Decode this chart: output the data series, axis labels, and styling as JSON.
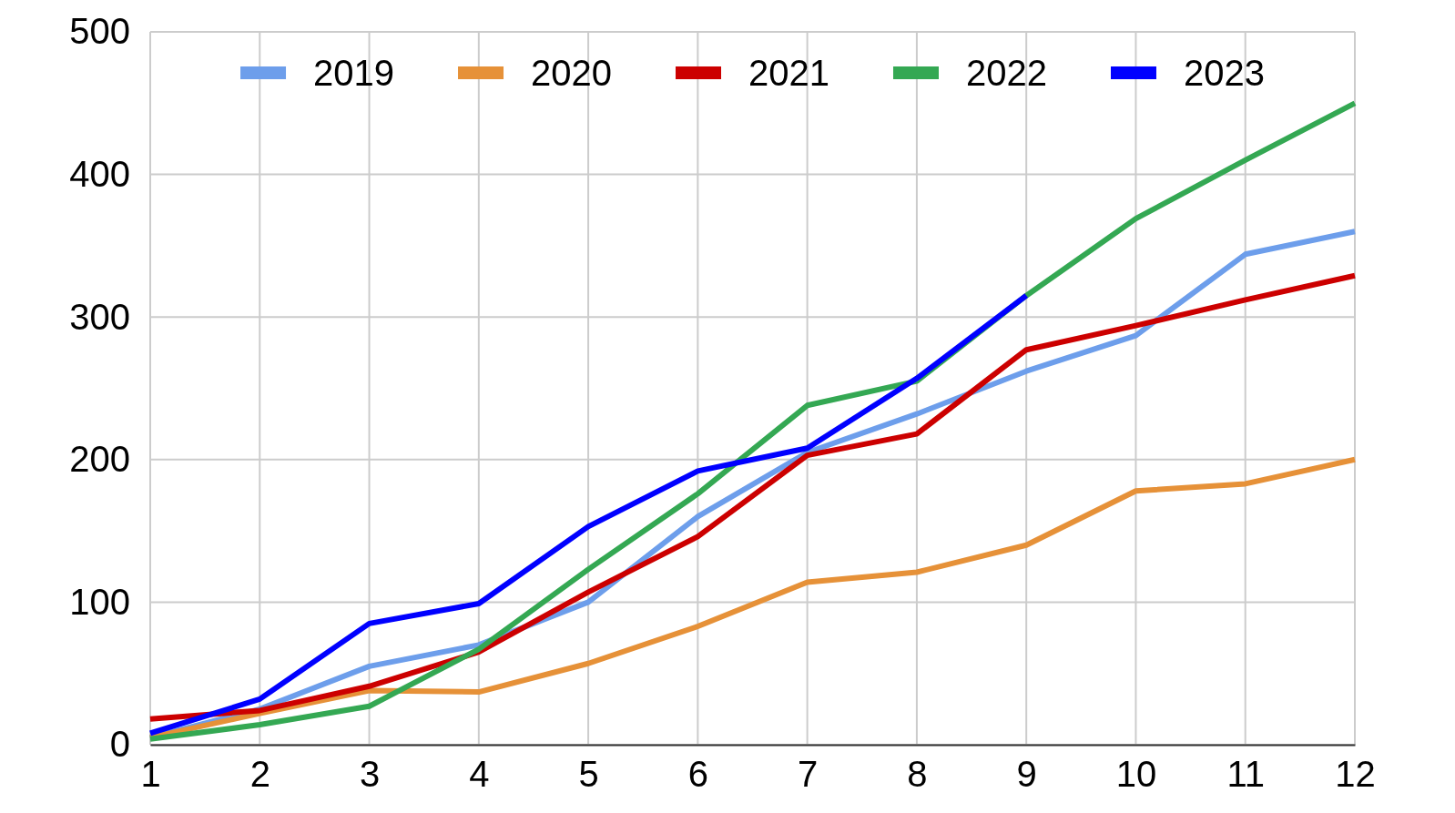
{
  "chart_data": {
    "type": "line",
    "x": [
      1,
      2,
      3,
      4,
      5,
      6,
      7,
      8,
      9,
      10,
      11,
      12
    ],
    "xlim": [
      1,
      12
    ],
    "xticks": [
      1,
      2,
      3,
      4,
      5,
      6,
      7,
      8,
      9,
      10,
      11,
      12
    ],
    "ylim": [
      0,
      500
    ],
    "yticks": [
      0,
      100,
      200,
      300,
      400,
      500
    ],
    "grid": true,
    "legend": "top",
    "marker": "none",
    "line_style": "solid",
    "series": [
      {
        "name": "2019",
        "color": "#6d9eeb",
        "values": [
          5,
          25,
          55,
          70,
          100,
          160,
          205,
          232,
          262,
          287,
          344,
          360
        ]
      },
      {
        "name": "2020",
        "color": "#e69138",
        "values": [
          5,
          22,
          38,
          37,
          57,
          83,
          114,
          121,
          140,
          178,
          183,
          200
        ]
      },
      {
        "name": "2021",
        "color": "#cc0000",
        "values": [
          18,
          24,
          41,
          65,
          107,
          146,
          203,
          218,
          277,
          294,
          312,
          329
        ]
      },
      {
        "name": "2022",
        "color": "#34a853",
        "values": [
          4,
          14,
          27,
          67,
          123,
          176,
          238,
          255,
          315,
          369,
          410,
          450
        ]
      },
      {
        "name": "2023",
        "color": "#0000ff",
        "values": [
          8,
          32,
          85,
          99,
          153,
          192,
          208,
          257,
          315,
          null,
          null,
          null
        ]
      }
    ]
  }
}
